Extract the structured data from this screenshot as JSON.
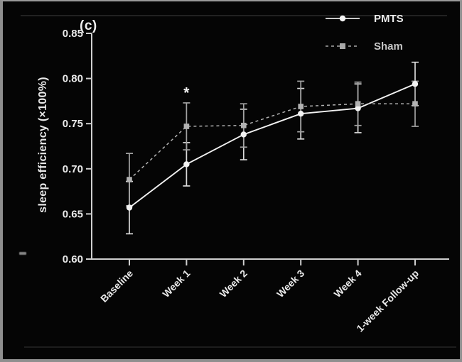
{
  "figure": {
    "panel_label": "(c)",
    "background_color": "#050505",
    "border_color": "#8f8f8f",
    "text_color": "#e9e9e9"
  },
  "legend": {
    "position": "top-right",
    "items": [
      {
        "label": "PMTS",
        "marker": "circle",
        "line_style": "solid",
        "color": "#f2f2f2"
      },
      {
        "label": "Sham",
        "marker": "square",
        "line_style": "dashed",
        "color": "#b2b2b2"
      }
    ]
  },
  "chart_data": {
    "type": "line",
    "title": "",
    "xlabel": "",
    "ylabel": "sleep efficiency (×100%)",
    "categories": [
      "Baseline",
      "Week 1",
      "Week 2",
      "Week 3",
      "Week 4",
      "1-week Follow-up"
    ],
    "ylim": [
      0.6,
      0.85
    ],
    "yticks": [
      0.6,
      0.65,
      0.7,
      0.75,
      0.8,
      0.85
    ],
    "grid": false,
    "error_bars": true,
    "series": [
      {
        "name": "PMTS",
        "marker": "circle",
        "line_style": "solid",
        "color": "#f2f2f2",
        "values": [
          0.657,
          0.705,
          0.738,
          0.761,
          0.767,
          0.794
        ],
        "err_low": [
          0.628,
          0.681,
          0.71,
          0.733,
          0.74,
          0.77
        ],
        "err_high": [
          0.686,
          0.729,
          0.766,
          0.789,
          0.794,
          0.818
        ]
      },
      {
        "name": "Sham",
        "marker": "square",
        "line_style": "dashed",
        "color": "#b2b2b2",
        "values": [
          0.688,
          0.747,
          0.748,
          0.769,
          0.772,
          0.772
        ],
        "err_low": [
          0.659,
          0.721,
          0.724,
          0.741,
          0.748,
          0.747
        ],
        "err_high": [
          0.717,
          0.773,
          0.772,
          0.797,
          0.796,
          0.797
        ]
      }
    ],
    "annotations": [
      {
        "text": "*",
        "category": "Week 1",
        "value": 0.789,
        "meaning": "significance-marker"
      }
    ]
  }
}
